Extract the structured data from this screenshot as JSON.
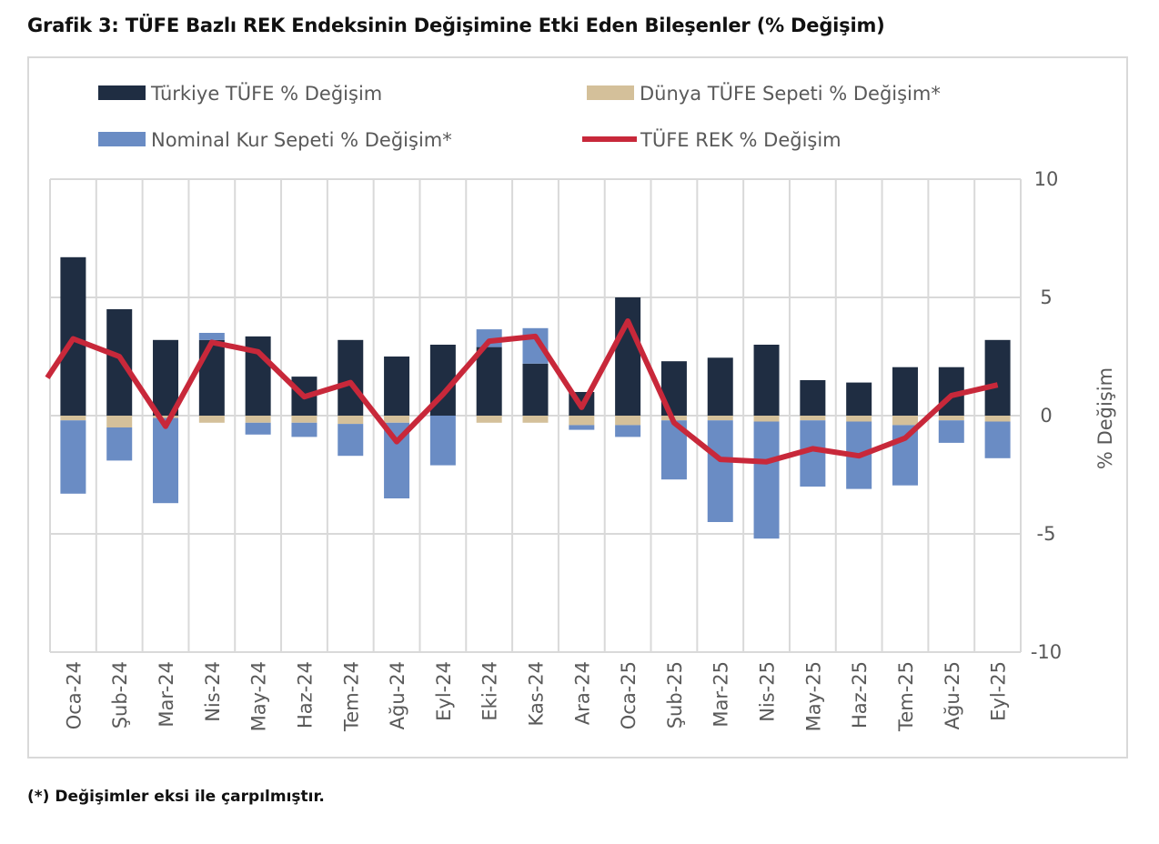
{
  "title": "Grafik 3: TÜFE Bazlı REK Endeksinin Değişimine Etki Eden Bileşenler (% Değişim)",
  "footnote": "(*) Değişimler eksi ile çarpılmıştır.",
  "colors": {
    "turkiye": "#1f2d42",
    "dunya": "#d4c09a",
    "nominal": "#6a8cc4",
    "rek": "#c8283a",
    "grid": "#d9d9d9"
  },
  "chart_data": {
    "type": "bar",
    "stacked": true,
    "ylabel": "% Değişim",
    "ylim": [
      -10,
      10
    ],
    "yticks": [
      "10",
      "5",
      "0",
      "-5",
      "-10"
    ],
    "ytick_values": [
      10,
      5,
      0,
      -5,
      -10
    ],
    "grid": true,
    "legend_placement": "top",
    "categories": [
      "Oca-24",
      "Şub-24",
      "Mar-24",
      "Nis-24",
      "May-24",
      "Haz-24",
      "Tem-24",
      "Ağu-24",
      "Eyl-24",
      "Eki-24",
      "Kas-24",
      "Ara-24",
      "Oca-25",
      "Şub-25",
      "Mar-25",
      "Nis-25",
      "May-25",
      "Haz-25",
      "Tem-25",
      "Ağu-25",
      "Eyl-25"
    ],
    "series": [
      {
        "name": "Türkiye TÜFE % Değişim",
        "type": "bar",
        "values": [
          6.7,
          4.5,
          3.2,
          3.2,
          3.35,
          1.65,
          3.2,
          2.5,
          3.0,
          2.9,
          2.2,
          1.0,
          5.0,
          2.3,
          2.45,
          3.0,
          1.5,
          1.4,
          2.05,
          2.05,
          3.2
        ]
      },
      {
        "name": "Dünya TÜFE Sepeti % Değişim*",
        "type": "bar",
        "values": [
          -0.2,
          -0.5,
          -0.1,
          -0.3,
          -0.3,
          -0.3,
          -0.35,
          -0.3,
          0,
          -0.3,
          -0.3,
          -0.4,
          -0.4,
          -0.2,
          -0.2,
          -0.25,
          -0.2,
          -0.25,
          -0.4,
          -0.2,
          -0.25
        ]
      },
      {
        "name": "Nominal Kur Sepeti % Değişim*",
        "type": "bar",
        "values": [
          -3.1,
          -1.4,
          -3.6,
          0.3,
          -0.5,
          -0.6,
          -1.35,
          -3.2,
          -2.1,
          0.75,
          1.5,
          -0.2,
          -0.5,
          -2.5,
          -4.3,
          -4.95,
          -2.8,
          -2.85,
          -2.55,
          -0.95,
          -1.55
        ]
      },
      {
        "name": "TÜFE REK % Değişim",
        "type": "line",
        "values": [
          3.25,
          2.5,
          -0.45,
          3.1,
          2.7,
          0.8,
          1.4,
          -1.1,
          0.9,
          3.15,
          3.35,
          0.35,
          4.0,
          -0.3,
          -1.85,
          -1.95,
          -1.4,
          -1.7,
          -0.95,
          0.85,
          1.3
        ]
      }
    ]
  }
}
